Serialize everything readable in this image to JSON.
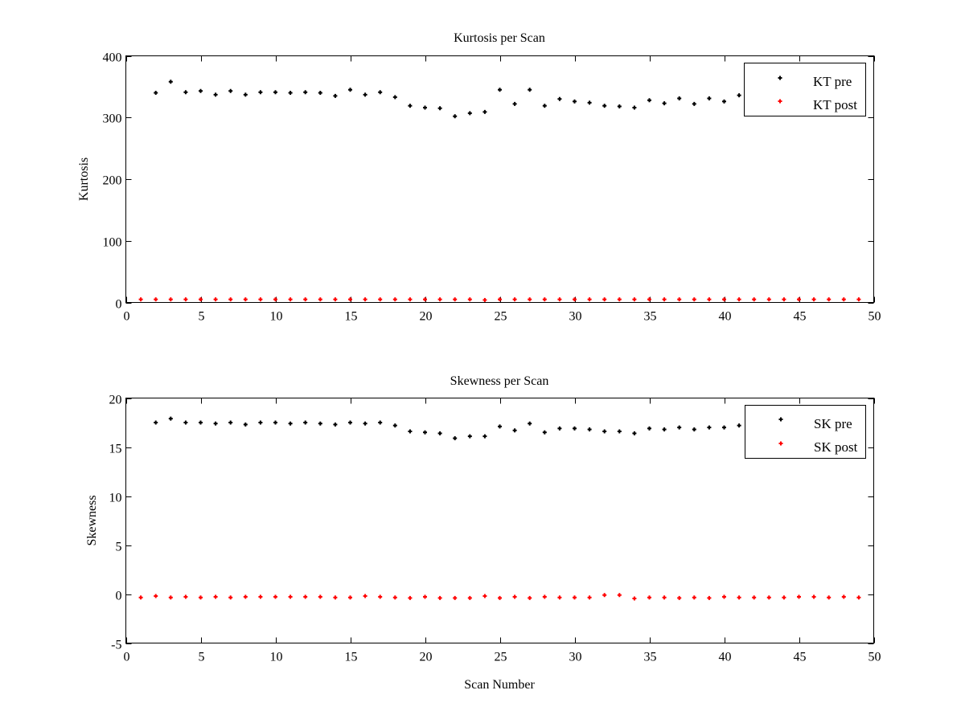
{
  "chart_data": [
    {
      "type": "scatter",
      "title": "Kurtosis per Scan",
      "xlabel": "",
      "ylabel": "Kurtosis",
      "xlim": [
        0,
        50
      ],
      "ylim": [
        0,
        400
      ],
      "xticks": [
        0,
        5,
        10,
        15,
        20,
        25,
        30,
        35,
        40,
        45,
        50
      ],
      "yticks": [
        0,
        100,
        200,
        300,
        400
      ],
      "grid": false,
      "legend_position": "top-right",
      "series": [
        {
          "name": "KT pre",
          "color": "#000000",
          "marker": "plus",
          "x": [
            2,
            3,
            4,
            5,
            6,
            7,
            8,
            9,
            10,
            11,
            12,
            13,
            14,
            15,
            16,
            17,
            18,
            19,
            20,
            21,
            22,
            23,
            24,
            25,
            26,
            27,
            28,
            29,
            30,
            31,
            32,
            33,
            34,
            35,
            36,
            37,
            38,
            39,
            40,
            41
          ],
          "y": [
            340,
            358,
            341,
            343,
            337,
            343,
            337,
            341,
            341,
            340,
            341,
            340,
            335,
            345,
            337,
            341,
            333,
            319,
            316,
            315,
            302,
            307,
            309,
            345,
            322,
            345,
            319,
            330,
            326,
            324,
            319,
            318,
            316,
            328,
            323,
            331,
            322,
            331,
            326,
            336
          ]
        },
        {
          "name": "KT post",
          "color": "#ff0000",
          "marker": "plus",
          "x": [
            1,
            2,
            3,
            4,
            5,
            6,
            7,
            8,
            9,
            10,
            11,
            12,
            13,
            14,
            15,
            16,
            17,
            18,
            19,
            20,
            21,
            22,
            23,
            24,
            25,
            26,
            27,
            28,
            29,
            30,
            31,
            32,
            33,
            34,
            35,
            36,
            37,
            38,
            39,
            40,
            41,
            42,
            43,
            44,
            45,
            46,
            47,
            48,
            49
          ],
          "y": [
            5,
            5,
            5,
            5,
            5,
            5,
            5,
            5,
            5,
            5,
            5,
            5,
            5,
            5,
            5,
            5,
            5,
            5,
            5,
            5,
            5,
            5,
            5,
            4,
            5,
            5,
            5,
            5,
            5,
            5,
            5,
            5,
            5,
            5,
            5,
            5,
            5,
            5,
            5,
            5,
            5,
            5,
            5,
            5,
            5,
            5,
            5,
            5,
            5
          ]
        }
      ]
    },
    {
      "type": "scatter",
      "title": "Skewness per Scan",
      "xlabel": "Scan Number",
      "ylabel": "Skewness",
      "xlim": [
        0,
        50
      ],
      "ylim": [
        -5,
        20
      ],
      "xticks": [
        0,
        5,
        10,
        15,
        20,
        25,
        30,
        35,
        40,
        45,
        50
      ],
      "yticks": [
        -5,
        0,
        5,
        10,
        15,
        20
      ],
      "grid": false,
      "legend_position": "top-right",
      "series": [
        {
          "name": "SK pre",
          "color": "#000000",
          "marker": "plus",
          "x": [
            2,
            3,
            4,
            5,
            6,
            7,
            8,
            9,
            10,
            11,
            12,
            13,
            14,
            15,
            16,
            17,
            18,
            19,
            20,
            21,
            22,
            23,
            24,
            25,
            26,
            27,
            28,
            29,
            30,
            31,
            32,
            33,
            34,
            35,
            36,
            37,
            38,
            39,
            40,
            41
          ],
          "y": [
            17.5,
            17.9,
            17.5,
            17.5,
            17.4,
            17.5,
            17.3,
            17.5,
            17.5,
            17.4,
            17.5,
            17.4,
            17.3,
            17.5,
            17.4,
            17.5,
            17.2,
            16.6,
            16.5,
            16.4,
            15.9,
            16.1,
            16.1,
            17.1,
            16.7,
            17.4,
            16.5,
            16.9,
            16.9,
            16.8,
            16.6,
            16.6,
            16.4,
            16.9,
            16.8,
            17.0,
            16.8,
            17.0,
            17.0,
            17.2
          ]
        },
        {
          "name": "SK post",
          "color": "#ff0000",
          "marker": "plus",
          "x": [
            1,
            2,
            3,
            4,
            5,
            6,
            7,
            8,
            9,
            10,
            11,
            12,
            13,
            14,
            15,
            16,
            17,
            18,
            19,
            20,
            21,
            22,
            23,
            24,
            25,
            26,
            27,
            28,
            29,
            30,
            31,
            32,
            33,
            34,
            35,
            36,
            37,
            38,
            39,
            40,
            41,
            42,
            43,
            44,
            45,
            46,
            47,
            48,
            49
          ],
          "y": [
            -0.35,
            -0.2,
            -0.35,
            -0.28,
            -0.35,
            -0.28,
            -0.35,
            -0.28,
            -0.28,
            -0.28,
            -0.28,
            -0.28,
            -0.28,
            -0.35,
            -0.35,
            -0.2,
            -0.28,
            -0.35,
            -0.4,
            -0.28,
            -0.4,
            -0.4,
            -0.4,
            -0.2,
            -0.4,
            -0.28,
            -0.4,
            -0.28,
            -0.35,
            -0.35,
            -0.35,
            -0.1,
            -0.1,
            -0.45,
            -0.35,
            -0.35,
            -0.4,
            -0.35,
            -0.4,
            -0.28,
            -0.35,
            -0.35,
            -0.35,
            -0.35,
            -0.28,
            -0.28,
            -0.35,
            -0.28,
            -0.35
          ]
        }
      ]
    }
  ]
}
